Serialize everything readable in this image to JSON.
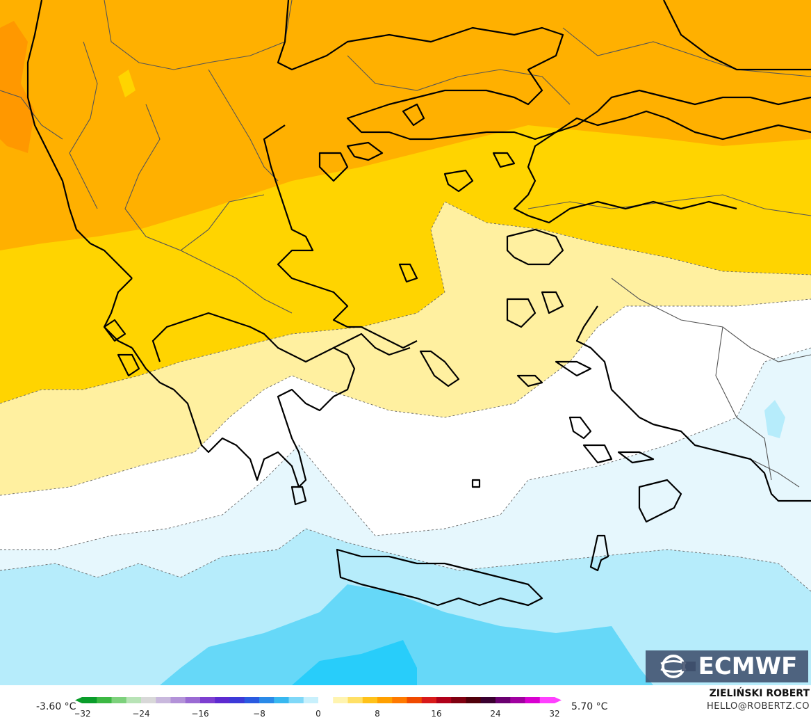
{
  "legend": {
    "min_value": "-3.60 °C",
    "max_value": "5.70 °C",
    "ticks": [
      "−32",
      "−24",
      "−16",
      "−8",
      "0",
      "8",
      "16",
      "24",
      "32"
    ],
    "palette": [
      "#0a9d2a",
      "#3cb843",
      "#7dd17c",
      "#b8e3b6",
      "#d8d8d8",
      "#c9b8dd",
      "#b392d8",
      "#9a6ad3",
      "#7d3fd0",
      "#5d2ad0",
      "#3c3ad8",
      "#2a5ae0",
      "#2a8ae8",
      "#38b8f0",
      "#7fd8f8",
      "#c8f0fc",
      "#ffffff",
      "#fff4b0",
      "#ffe066",
      "#ffc21a",
      "#ffa000",
      "#ff7a00",
      "#f04a00",
      "#d81a1a",
      "#b0001a",
      "#800010",
      "#50000a",
      "#3a0030",
      "#6a0070",
      "#a000a0",
      "#d800d0",
      "#ff40ff"
    ]
  },
  "brand": {
    "logo_text": "ECMWF"
  },
  "credits": {
    "author": "ZIELIŃSKI ROBERT",
    "email": "HELLO@ROBERTZ.CO"
  }
}
